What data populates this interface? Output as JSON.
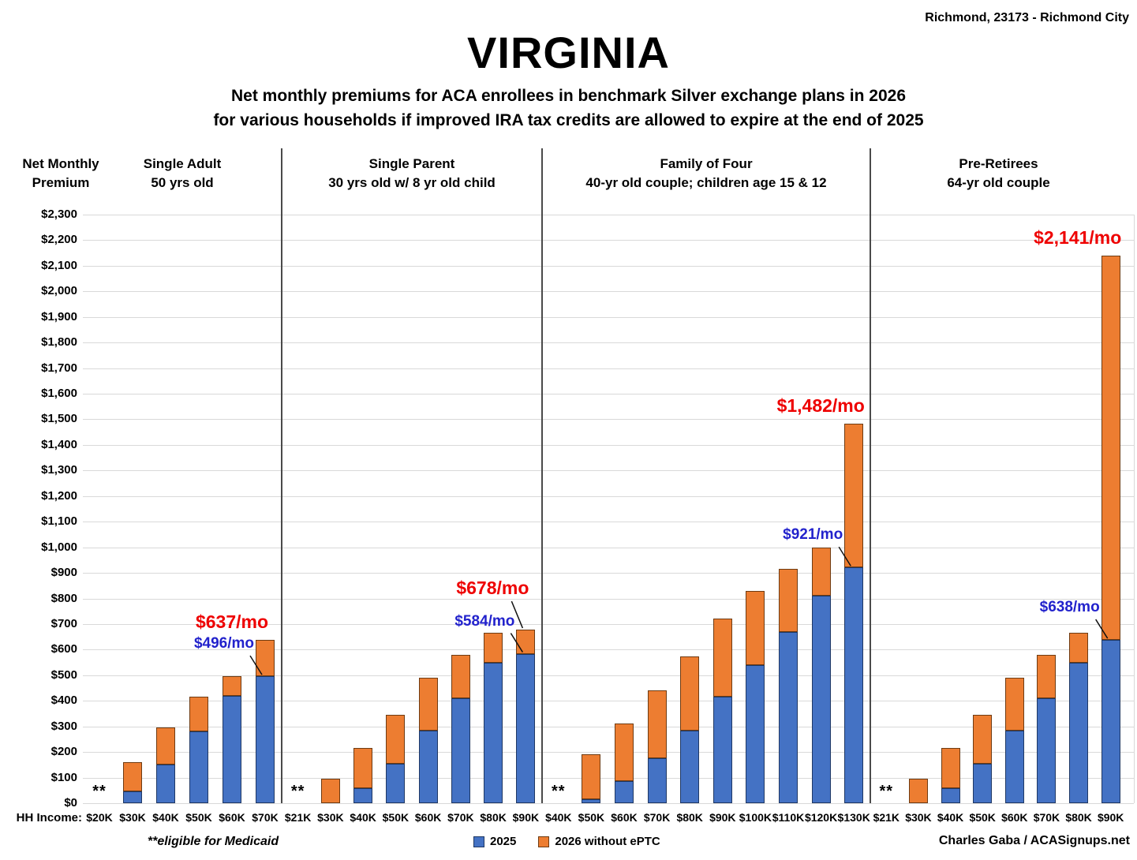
{
  "header": {
    "location": "Richmond, 23173 - Richmond City",
    "title": "VIRGINIA",
    "subtitle_line1": "Net monthly premiums for ACA enrollees in benchmark Silver exchange plans in 2026",
    "subtitle_line2": "for various households if improved IRA tax credits are allowed to expire at the end of 2025"
  },
  "axis": {
    "y_title_line1": "Net Monthly",
    "y_title_line2": "Premium",
    "x_title": "HH Income:"
  },
  "legend": [
    {
      "label": "2025",
      "color": "#4472C4",
      "border": "#1F3864"
    },
    {
      "label": "2026 without ePTC",
      "color": "#ED7D31",
      "border": "#6E3B12"
    }
  ],
  "footer": {
    "medicaid_note": "**eligible for Medicaid",
    "credit": "Charles Gaba / ACASignups.net"
  },
  "colors": {
    "bar_2025": "#4472C4",
    "bar_2025_border": "#1F3864",
    "bar_2026": "#ED7D31",
    "bar_2026_border": "#6E3B12",
    "callout_2026_text": "#EE0000",
    "callout_2025_text": "#2222CC",
    "gridline": "#D9D9D9",
    "divider": "#4A4A4A",
    "callout_line": "#111111"
  },
  "chart_data": {
    "type": "bar",
    "stacked": true,
    "title": "VIRGINIA",
    "ylabel": "Net Monthly Premium",
    "ylim": [
      0,
      2300
    ],
    "ytick_step": 100,
    "grid": true,
    "legend_position": "bottom",
    "series_names": [
      "2025",
      "2026 without ePTC"
    ],
    "medicaid_marker": "**",
    "groups": [
      {
        "title": "Single Adult",
        "subtitle": "50 yrs old",
        "categories": [
          "$20K",
          "$30K",
          "$40K",
          "$50K",
          "$60K",
          "$70K"
        ],
        "medicaid": [
          true,
          false,
          false,
          false,
          false,
          false
        ],
        "values_2025": [
          null,
          45,
          150,
          280,
          420,
          496
        ],
        "values_2026_without_eptc": [
          null,
          160,
          295,
          415,
          495,
          637
        ],
        "callout_2025": "$496/mo",
        "callout_2026": "$637/mo"
      },
      {
        "title": "Single Parent",
        "subtitle": "30 yrs old w/ 8 yr old child",
        "categories": [
          "$21K",
          "$30K",
          "$40K",
          "$50K",
          "$60K",
          "$70K",
          "$80K",
          "$90K"
        ],
        "medicaid": [
          true,
          false,
          false,
          false,
          false,
          false,
          false,
          false
        ],
        "values_2025": [
          null,
          0,
          60,
          155,
          285,
          410,
          550,
          584
        ],
        "values_2026_without_eptc": [
          null,
          95,
          215,
          345,
          490,
          580,
          665,
          678
        ],
        "callout_2025": "$584/mo",
        "callout_2026": "$678/mo"
      },
      {
        "title": "Family of Four",
        "subtitle": "40-yr old couple; children age 15 & 12",
        "categories": [
          "$40K",
          "$50K",
          "$60K",
          "$70K",
          "$80K",
          "$90K",
          "$100K",
          "$110K",
          "$120K",
          "$130K"
        ],
        "medicaid": [
          true,
          false,
          false,
          false,
          false,
          false,
          false,
          false,
          false,
          false
        ],
        "values_2025": [
          null,
          15,
          85,
          175,
          285,
          415,
          540,
          670,
          810,
          921
        ],
        "values_2026_without_eptc": [
          null,
          190,
          310,
          440,
          575,
          720,
          830,
          915,
          1000,
          1482
        ],
        "callout_2025": "$921/mo",
        "callout_2026": "$1,482/mo"
      },
      {
        "title": "Pre-Retirees",
        "subtitle": "64-yr old couple",
        "categories": [
          "$21K",
          "$30K",
          "$40K",
          "$50K",
          "$60K",
          "$70K",
          "$80K",
          "$90K"
        ],
        "medicaid": [
          true,
          false,
          false,
          false,
          false,
          false,
          false,
          false
        ],
        "values_2025": [
          null,
          0,
          60,
          155,
          285,
          410,
          550,
          638
        ],
        "values_2026_without_eptc": [
          null,
          95,
          215,
          345,
          490,
          580,
          665,
          2141
        ],
        "callout_2025": "$638/mo",
        "callout_2026": "$2,141/mo"
      }
    ]
  }
}
